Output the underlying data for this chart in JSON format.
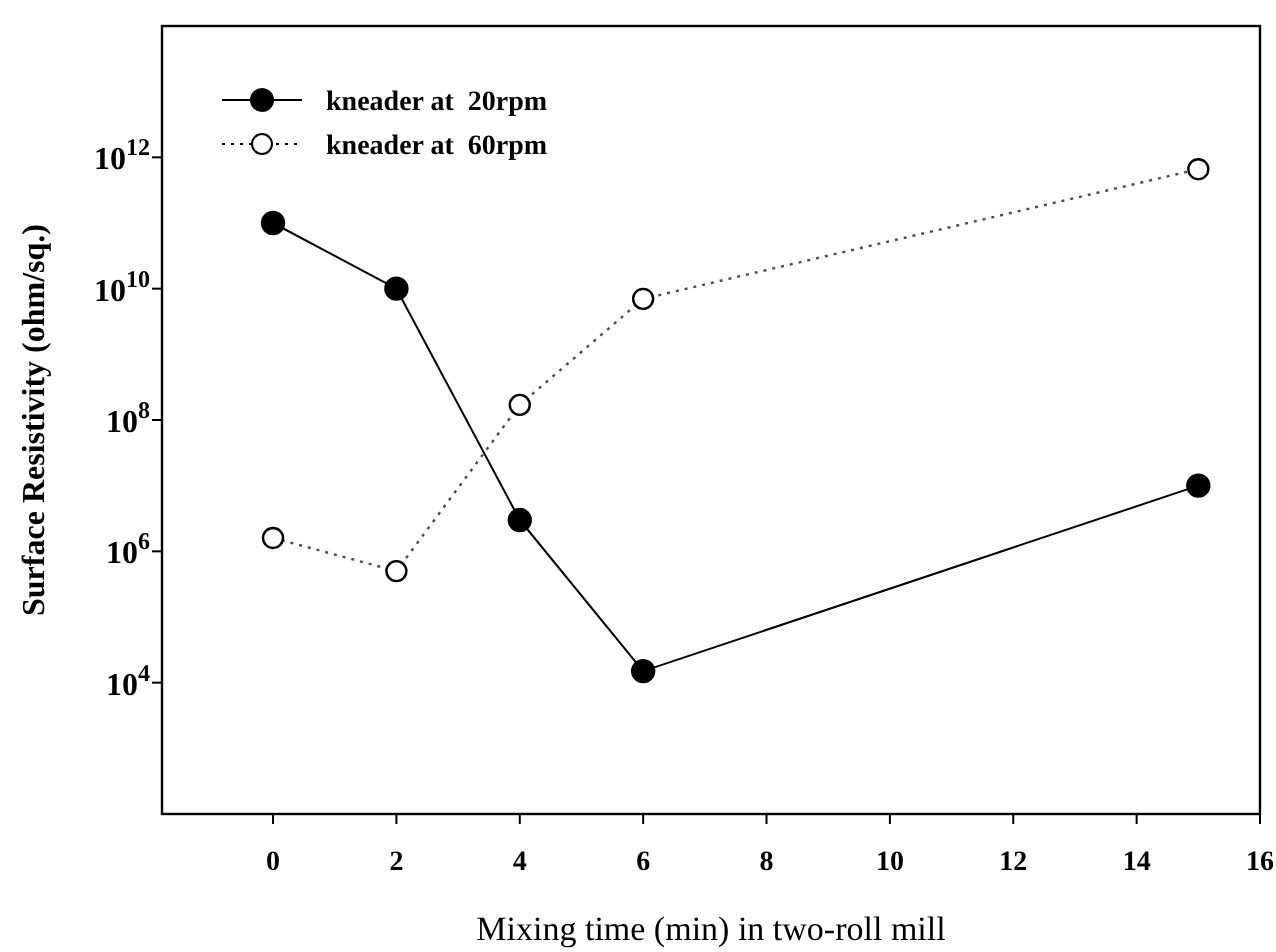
{
  "chart_data": {
    "type": "line",
    "xlabel": "Mixing time (min) in two-roll mill",
    "ylabel": "Surface Resistivity (ohm/sq.)",
    "log": "y",
    "x": [
      0,
      2,
      4,
      6,
      15
    ],
    "series": [
      {
        "name": "kneader at  20rpm",
        "color": "#000000",
        "values": [
          100000000000.0,
          10000000000.0,
          3000000.0,
          15000.0,
          10000000.0
        ],
        "line_style": "solid"
      },
      {
        "name": "kneader at  60rpm",
        "color": "#000000",
        "values": [
          1600000.0,
          500000.0,
          170000000.0,
          7000000000.0,
          660000000000.0
        ],
        "line_style": "dotted"
      }
    ],
    "xlim": [
      -1.8,
      16
    ],
    "xticks": [
      0,
      2,
      4,
      6,
      8,
      10,
      12,
      14,
      16
    ],
    "ylim": [
      100,
      100000000000000.0
    ],
    "yticks": [
      {
        "value": 10000.0,
        "label": "10$^{4}$"
      },
      {
        "value": 1000000.0,
        "label": "10$^{6}$"
      },
      {
        "value": 100000000.0,
        "label": "10$^{8}$"
      },
      {
        "value": 10000000000.0,
        "label": "10$^{10}$"
      },
      {
        "value": 1000000000000.0,
        "label": "10$^{12}$"
      }
    ],
    "marker": "circle",
    "legend": "top left",
    "grid": false
  }
}
